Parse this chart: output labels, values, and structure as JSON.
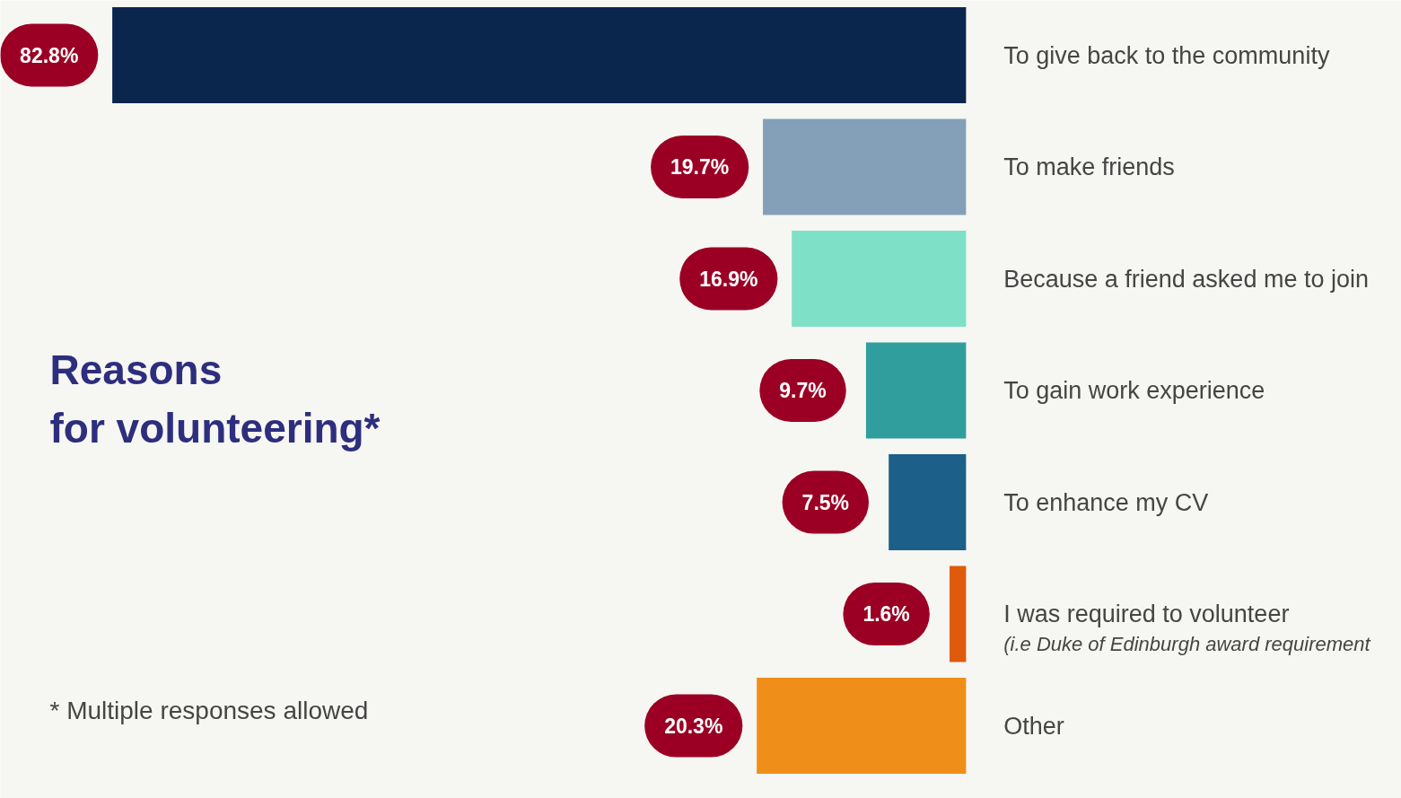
{
  "chart_data": {
    "type": "bar",
    "orientation": "horizontal",
    "title": "Reasons\nfor volunteering*",
    "categories": [
      "To give back to the community",
      "To make friends",
      "Because a friend asked me to join",
      "To gain work experience",
      "To enhance my CV",
      "I was required to volunteer",
      "Other"
    ],
    "values": [
      82.8,
      19.7,
      16.9,
      9.7,
      7.5,
      1.6,
      20.3
    ],
    "colors": [
      "#0a264d",
      "#84a0b8",
      "#7ee0c6",
      "#319e9e",
      "#1c5f88",
      "#e05a0c",
      "#ef8f1a"
    ],
    "value_labels": [
      "82.8%",
      "19.7%",
      "16.9%",
      "9.7%",
      "7.5%",
      "1.6%",
      "20.3%"
    ],
    "annotations": [
      "* Multiple responses allowed",
      "(i.e Duke of Edinburgh award requirement"
    ],
    "grid": false
  }
}
